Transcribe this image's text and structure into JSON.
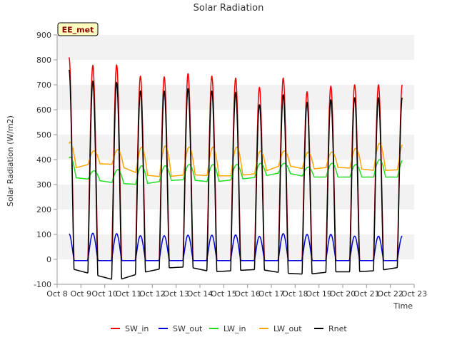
{
  "chart_data": {
    "type": "line",
    "title": "Solar Radiation",
    "xlabel": "Time",
    "ylabel": "Solar Radiation (W/m2)",
    "ylim": [
      -100,
      900
    ],
    "xlim": [
      8,
      23
    ],
    "yticks": [
      -100,
      0,
      100,
      200,
      300,
      400,
      500,
      600,
      700,
      800,
      900
    ],
    "xticks": [
      {
        "value": 8,
        "label": "Oct 8"
      },
      {
        "value": 9,
        "label": "Oct 9"
      },
      {
        "value": 10,
        "label": "Oct 10"
      },
      {
        "value": 11,
        "label": "Oct 11"
      },
      {
        "value": 12,
        "label": "Oct 12"
      },
      {
        "value": 13,
        "label": "Oct 13"
      },
      {
        "value": 14,
        "label": "Oct 14"
      },
      {
        "value": 15,
        "label": "Oct 15"
      },
      {
        "value": 16,
        "label": "Oct 16"
      },
      {
        "value": 17,
        "label": "Oct 17"
      },
      {
        "value": 18,
        "label": "Oct 18"
      },
      {
        "value": 19,
        "label": "Oct 19"
      },
      {
        "value": 20,
        "label": "Oct 20"
      },
      {
        "value": 21,
        "label": "Oct 21"
      },
      {
        "value": 22,
        "label": "Oct 22"
      },
      {
        "value": 23,
        "label": "Oct 23"
      }
    ],
    "annotation": "EE_met",
    "grid": "horizontal bands",
    "legend_position": "bottom",
    "data_range_days": [
      8.5,
      22.5
    ],
    "series": [
      {
        "name": "SW_in",
        "color": "#ee0000",
        "kind": "sw_in",
        "daily_peaks": [
          810,
          778,
          780,
          735,
          732,
          745,
          735,
          727,
          690,
          727,
          672,
          695,
          700,
          700
        ],
        "night_value": -5
      },
      {
        "name": "SW_out",
        "color": "#0000dd",
        "kind": "sw_out",
        "daily_peaks": [
          102,
          105,
          103,
          95,
          95,
          97,
          97,
          98,
          92,
          103,
          100,
          100,
          93,
          93
        ],
        "night_value": -5
      },
      {
        "name": "LW_in",
        "color": "#22dd22",
        "kind": "lw",
        "night_levels": [
          330,
          320,
          305,
          300,
          315,
          320,
          310,
          320,
          330,
          350,
          330,
          330,
          330,
          330,
          330
        ],
        "day_peaks": [
          410,
          355,
          360,
          375,
          375,
          380,
          380,
          380,
          385,
          385,
          370,
          385,
          380,
          400
        ]
      },
      {
        "name": "LW_out",
        "color": "#ffa500",
        "kind": "lw",
        "night_levels": [
          360,
          385,
          380,
          340,
          330,
          340,
          335,
          335,
          345,
          380,
          360,
          370,
          365,
          355,
          360
        ],
        "day_peaks": [
          470,
          435,
          440,
          450,
          455,
          450,
          450,
          450,
          435,
          435,
          430,
          430,
          445,
          465
        ]
      },
      {
        "name": "Rnet",
        "color": "#000000",
        "kind": "rnet",
        "daily_peaks": [
          760,
          715,
          710,
          675,
          675,
          685,
          675,
          670,
          620,
          660,
          630,
          640,
          648,
          648
        ],
        "night_levels": [
          -35,
          -60,
          -85,
          -55,
          -35,
          -30,
          -50,
          -45,
          -40,
          -55,
          -60,
          -50,
          -50,
          -45,
          -30
        ]
      }
    ]
  }
}
